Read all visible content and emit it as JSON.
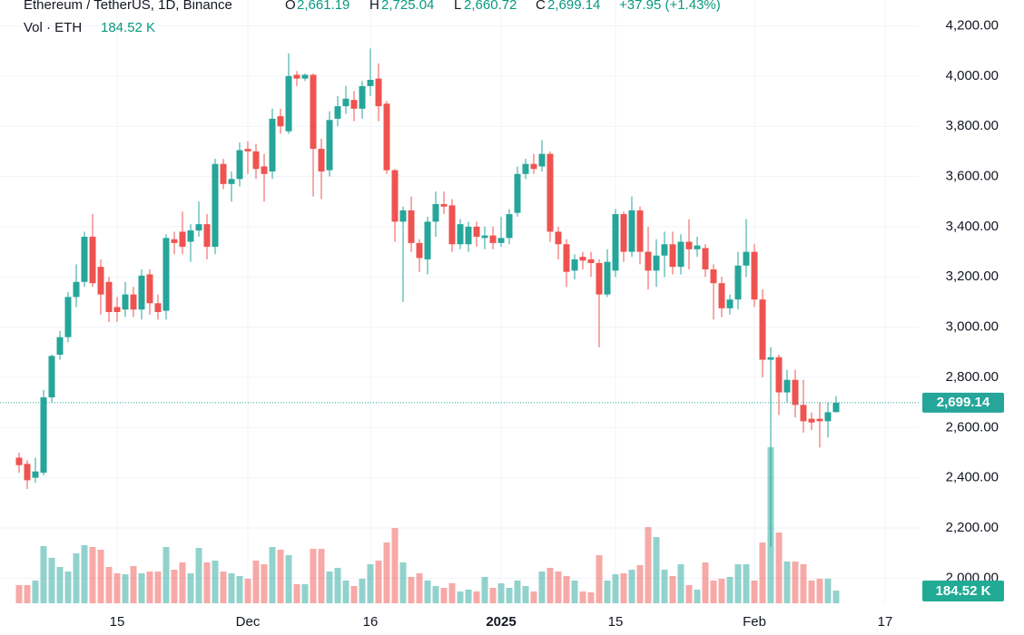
{
  "chart_data": {
    "type": "candlestick",
    "header": {
      "symbol": "Ethereum / TetherUS, 1D, Binance",
      "open_label": "O",
      "open": "2,661.19",
      "high_label": "H",
      "high": "2,725.04",
      "low_label": "L",
      "low": "2,660.72",
      "close_label": "C",
      "close": "2,699.14",
      "change": "+37.95 (+1.43%)"
    },
    "up_color": "#26a69a",
    "down_color": "#ef5350",
    "categories": [
      null,
      null,
      null,
      null,
      null,
      null,
      null,
      null,
      null,
      null,
      null,
      null,
      "15",
      null,
      null,
      null,
      null,
      null,
      null,
      null,
      null,
      null,
      null,
      null,
      null,
      null,
      null,
      null,
      "Dec",
      null,
      null,
      null,
      null,
      null,
      null,
      null,
      null,
      null,
      null,
      null,
      null,
      null,
      null,
      "16",
      null,
      null,
      null,
      null,
      null,
      null,
      null,
      null,
      null,
      null,
      null,
      null,
      null,
      null,
      null,
      "2025",
      null,
      null,
      null,
      null,
      null,
      null,
      null,
      null,
      null,
      null,
      null,
      null,
      null,
      "15",
      null,
      null,
      null,
      null,
      null,
      null,
      null,
      null,
      null,
      null,
      null,
      null,
      null,
      null,
      null,
      null,
      "Feb",
      null,
      null,
      null,
      null,
      null,
      null,
      null,
      null,
      null,
      null,
      null,
      null,
      null,
      null,
      null,
      "17",
      null,
      null,
      null,
      null
    ],
    "open": [
      2480,
      2455,
      2400,
      2420,
      2720,
      2890,
      2960,
      3120,
      3180,
      3360,
      3240,
      3180,
      3080,
      3070,
      3130,
      3070,
      3210,
      3095,
      3065,
      3350,
      3380,
      3340,
      3385,
      3410,
      3320,
      3650,
      3570,
      3590,
      3710,
      3700,
      3640,
      3620,
      3840,
      3780,
      4005,
      3990,
      4005,
      3710,
      3625,
      3830,
      3880,
      3905,
      3870,
      3960,
      3990,
      3890,
      3625,
      3420,
      3465,
      3335,
      3270,
      3420,
      3490,
      3485,
      3330,
      3330,
      3400,
      3355,
      3365,
      3335,
      3355,
      3455,
      3610,
      3650,
      3640,
      3690,
      3380,
      3330,
      3225,
      3280,
      3270,
      3255,
      3130,
      3225,
      3450,
      3300,
      3465,
      3300,
      3225,
      3285,
      3330,
      3240,
      3340,
      3310,
      3315,
      3230,
      3175,
      3075,
      3110,
      3245,
      3300,
      3110,
      2870,
      2880,
      2740,
      2790,
      2690,
      2635,
      2635,
      2625,
      2661.19,
      null,
      null,
      null,
      null,
      null,
      null,
      null,
      null,
      null,
      null
    ],
    "high": [
      2500,
      2470,
      2480,
      2750,
      2890,
      2985,
      3140,
      3250,
      3380,
      3450,
      3270,
      3200,
      3120,
      3180,
      3160,
      3230,
      3230,
      3130,
      3370,
      3380,
      3460,
      3410,
      3500,
      3450,
      3670,
      3670,
      3620,
      3735,
      3740,
      3730,
      3690,
      3870,
      3870,
      4090,
      4020,
      4010,
      4010,
      3750,
      3860,
      3920,
      3960,
      3940,
      3980,
      4110,
      4050,
      3900,
      3630,
      3480,
      3520,
      3350,
      3440,
      3540,
      3540,
      3510,
      3430,
      3420,
      3420,
      3400,
      3400,
      3440,
      3470,
      3640,
      3670,
      3690,
      3745,
      3700,
      3400,
      3350,
      3290,
      3300,
      3300,
      3270,
      3310,
      3470,
      3460,
      3520,
      3480,
      3400,
      3350,
      3380,
      3380,
      3370,
      3430,
      3360,
      3330,
      3250,
      3200,
      3130,
      3300,
      3430,
      3330,
      3150,
      2920,
      2890,
      2830,
      2830,
      2790,
      2660,
      2700,
      2700,
      2725.04,
      null,
      null,
      null,
      null,
      null,
      null,
      null,
      null,
      null,
      null
    ],
    "low": [
      2420,
      2355,
      2380,
      2410,
      2700,
      2870,
      2940,
      3080,
      3160,
      3160,
      3050,
      3020,
      3020,
      3040,
      3040,
      3030,
      3050,
      3030,
      3030,
      3290,
      3290,
      3260,
      3360,
      3270,
      3290,
      3550,
      3500,
      3560,
      3610,
      3590,
      3500,
      3590,
      3770,
      3770,
      3960,
      3980,
      3520,
      3510,
      3600,
      3800,
      3850,
      3820,
      3830,
      3920,
      3820,
      3610,
      3340,
      3100,
      3300,
      3220,
      3210,
      3360,
      3450,
      3300,
      3310,
      3300,
      3320,
      3310,
      3310,
      3320,
      3330,
      3440,
      3590,
      3610,
      3620,
      3340,
      3270,
      3160,
      3190,
      3230,
      3200,
      2920,
      3120,
      3200,
      3260,
      3280,
      3250,
      3150,
      3160,
      3200,
      3210,
      3210,
      3230,
      3280,
      3200,
      3030,
      3040,
      3050,
      3070,
      3200,
      3080,
      2800,
      2125,
      2650,
      2700,
      2640,
      2580,
      2590,
      2520,
      2560,
      2660.72,
      null,
      null,
      null,
      null,
      null,
      null,
      null,
      null,
      null,
      null
    ],
    "close": [
      2450,
      2390,
      2425,
      2720,
      2885,
      2960,
      3120,
      3180,
      3360,
      3175,
      3130,
      3060,
      3060,
      3130,
      3070,
      3205,
      3095,
      3060,
      3355,
      3335,
      3320,
      3385,
      3410,
      3320,
      3650,
      3570,
      3590,
      3705,
      3700,
      3630,
      3610,
      3830,
      3800,
      4000,
      3990,
      4005,
      3710,
      3620,
      3825,
      3880,
      3910,
      3870,
      3960,
      3985,
      3880,
      3625,
      3420,
      3465,
      3335,
      3275,
      3420,
      3490,
      3480,
      3330,
      3410,
      3400,
      3360,
      3365,
      3335,
      3355,
      3450,
      3610,
      3650,
      3630,
      3690,
      3380,
      3330,
      3220,
      3270,
      3265,
      3255,
      3130,
      3260,
      3450,
      3300,
      3465,
      3300,
      3225,
      3285,
      3330,
      3240,
      3340,
      3310,
      3325,
      3230,
      3175,
      3075,
      3110,
      3245,
      3300,
      3110,
      2870,
      2880,
      2740,
      2790,
      2690,
      2625,
      2620,
      2625,
      2661,
      2699.14,
      null,
      null,
      null,
      null,
      null,
      null,
      null,
      null,
      null,
      null
    ],
    "ylim": [
      1900,
      4303
    ],
    "yticks": [
      {
        "value": 2000,
        "label": "2,000.00"
      },
      {
        "value": 2200,
        "label": "2,200.00"
      },
      {
        "value": 2400,
        "label": "2,400.00"
      },
      {
        "value": 2600,
        "label": "2,600.00"
      },
      {
        "value": 2800,
        "label": "2,800.00"
      },
      {
        "value": 3000,
        "label": "3,000.00"
      },
      {
        "value": 3200,
        "label": "3,200.00"
      },
      {
        "value": 3400,
        "label": "3,400.00"
      },
      {
        "value": 3600,
        "label": "3,600.00"
      },
      {
        "value": 3800,
        "label": "3,800.00"
      },
      {
        "value": 4000,
        "label": "4,000.00"
      },
      {
        "value": 4200,
        "label": "4,200.00"
      }
    ],
    "grid": true,
    "volume": {
      "label": "Vol · ETH",
      "last_label": "184.52 K",
      "axis": "y2",
      "values": [
        263,
        263,
        330,
        830,
        660,
        527,
        461,
        725,
        843,
        817,
        777,
        527,
        435,
        421,
        540,
        435,
        461,
        461,
        817,
        487,
        593,
        435,
        804,
        593,
        619,
        461,
        435,
        395,
        356,
        619,
        566,
        817,
        777,
        698,
        277,
        277,
        790,
        790,
        461,
        514,
        330,
        250,
        356,
        566,
        619,
        882,
        1093,
        593,
        382,
        435,
        330,
        250,
        224,
        290,
        171,
        198,
        171,
        382,
        224,
        290,
        224,
        330,
        250,
        171,
        461,
        514,
        461,
        395,
        330,
        171,
        158,
        698,
        330,
        421,
        435,
        487,
        553,
        1106,
        961,
        487,
        395,
        566,
        263,
        198,
        593,
        330,
        356,
        382,
        566,
        566,
        330,
        882,
        2265,
        1027,
        606,
        606,
        566,
        330,
        356,
        356,
        184.52,
        null,
        null,
        null,
        null,
        null,
        null,
        null,
        null,
        null,
        null
      ]
    },
    "y2lim": [
      0,
      8760
    ]
  }
}
